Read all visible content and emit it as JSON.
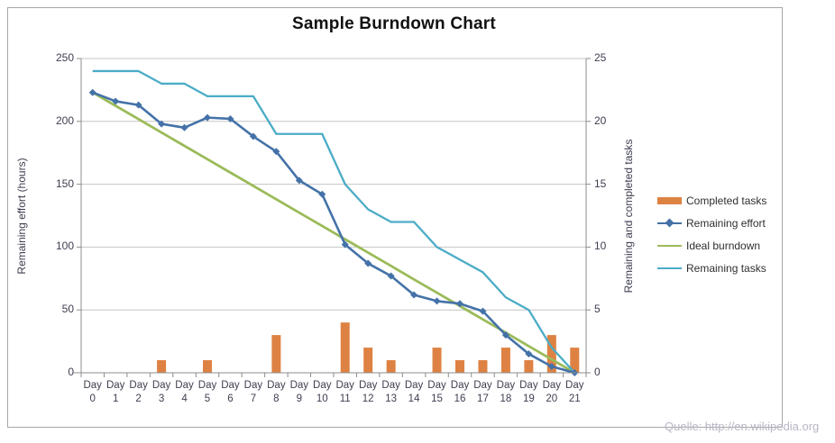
{
  "attribution": "Quelle: http://en.wikipedia.org",
  "chart_data": {
    "type": "combo",
    "title": "Sample Burndown Chart",
    "x_tick_prefix": "Day",
    "days": [
      0,
      1,
      2,
      3,
      4,
      5,
      6,
      7,
      8,
      9,
      10,
      11,
      12,
      13,
      14,
      15,
      16,
      17,
      18,
      19,
      20,
      21
    ],
    "left_axis": {
      "label": "Remaining effort (hours)",
      "ticks": [
        0,
        50,
        100,
        150,
        200,
        250
      ],
      "range": [
        0,
        250
      ]
    },
    "right_axis": {
      "label": "Remaining and  completed tasks",
      "ticks": [
        0,
        5,
        10,
        15,
        20,
        25
      ],
      "range": [
        0,
        25
      ]
    },
    "grid": "horizontal",
    "legend_position": "right",
    "series": [
      {
        "name": "Completed tasks",
        "kind": "bar",
        "axis": "right",
        "color": "#de8243",
        "values": [
          0,
          0,
          0,
          1,
          0,
          1,
          0,
          0,
          3,
          0,
          0,
          4,
          2,
          1,
          0,
          2,
          1,
          1,
          2,
          1,
          3,
          2
        ]
      },
      {
        "name": "Remaining effort",
        "kind": "line",
        "marker": "diamond",
        "axis": "left",
        "color": "#4472a8",
        "values": [
          223,
          216,
          213,
          198,
          195,
          203,
          202,
          188,
          176,
          153,
          142,
          102,
          87,
          77,
          62,
          57,
          55,
          49,
          30,
          15,
          5,
          0
        ]
      },
      {
        "name": "Ideal burndown",
        "kind": "line",
        "axis": "left",
        "color": "#9bbb59",
        "values": [
          223,
          212.4,
          201.8,
          191.1,
          180.5,
          169.9,
          159.3,
          148.7,
          138,
          127.4,
          116.8,
          106.2,
          95.6,
          85,
          74.3,
          63.7,
          53.1,
          42.5,
          31.9,
          21.2,
          10.6,
          0
        ]
      },
      {
        "name": "Remaining tasks",
        "kind": "line",
        "axis": "right",
        "color": "#4bacc6",
        "values": [
          24,
          24,
          24,
          23,
          23,
          22,
          22,
          22,
          19,
          19,
          19,
          15,
          13,
          12,
          12,
          10,
          9,
          8,
          6,
          5,
          2,
          0
        ]
      }
    ]
  },
  "style": {
    "gridline_color": "#c4c4c4",
    "axis_color": "#8c8c8c",
    "frame_color": "#a6a6a6"
  }
}
